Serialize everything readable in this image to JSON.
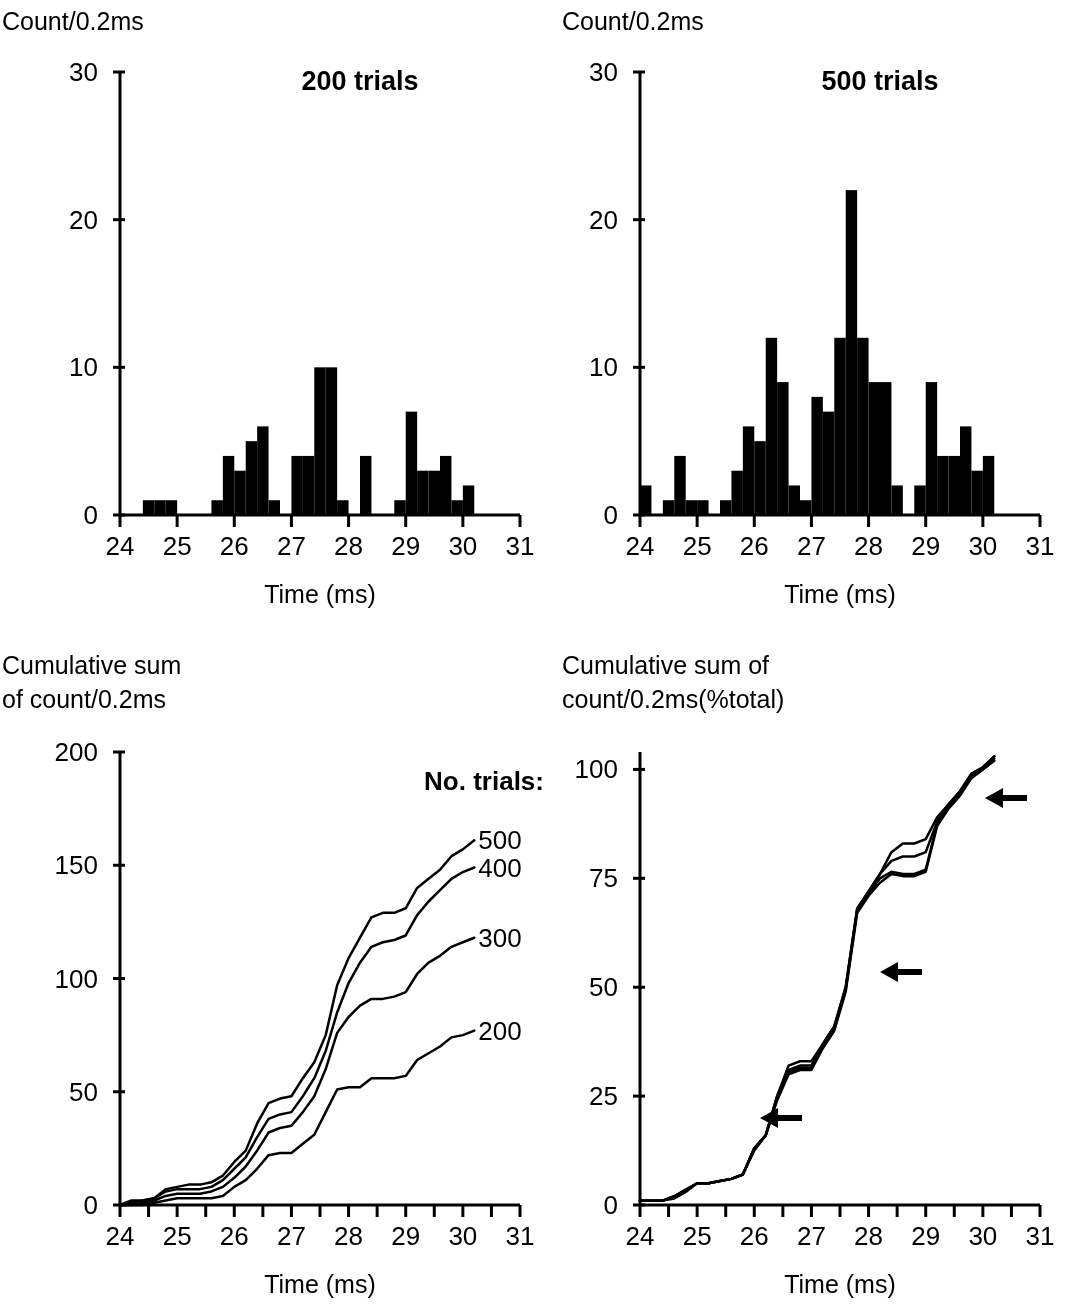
{
  "chart_data": [
    {
      "type": "histogram",
      "title": "200 trials",
      "ylabel": "Count/0.2ms",
      "xlabel": "Time (ms)",
      "color": "#000000",
      "bins": [
        24,
        24.2,
        24.4,
        24.6,
        24.8,
        25,
        25.2,
        25.4,
        25.6,
        25.8,
        26,
        26.2,
        26.4,
        26.6,
        26.8,
        27,
        27.2,
        27.4,
        27.6,
        27.8,
        28,
        28.2,
        28.4,
        28.6,
        28.8,
        29,
        29.2,
        29.4,
        29.6,
        29.8,
        30,
        30.2,
        30.4,
        30.6,
        30.8,
        31
      ],
      "values": [
        0,
        0,
        1,
        1,
        1,
        0,
        0,
        0,
        1,
        4,
        3,
        5,
        6,
        1,
        0,
        4,
        4,
        10,
        10,
        1,
        0,
        4,
        0,
        0,
        1,
        7,
        3,
        3,
        4,
        1,
        2,
        0,
        0,
        0,
        0
      ],
      "xlim": [
        24,
        31
      ],
      "xticks": [
        24,
        25,
        26,
        27,
        28,
        29,
        30,
        31
      ],
      "ylim": [
        0,
        30
      ],
      "yticks": [
        0,
        10,
        20,
        30
      ]
    },
    {
      "type": "histogram",
      "title": "500 trials",
      "ylabel": "Count/0.2ms",
      "xlabel": "Time (ms)",
      "color": "#000000",
      "bins": [
        24,
        24.2,
        24.4,
        24.6,
        24.8,
        25,
        25.2,
        25.4,
        25.6,
        25.8,
        26,
        26.2,
        26.4,
        26.6,
        26.8,
        27,
        27.2,
        27.4,
        27.6,
        27.8,
        28,
        28.2,
        28.4,
        28.6,
        28.8,
        29,
        29.2,
        29.4,
        29.6,
        29.8,
        30,
        30.2,
        30.4,
        30.6,
        30.8,
        31
      ],
      "values": [
        2,
        0,
        1,
        4,
        1,
        1,
        0,
        1,
        3,
        6,
        5,
        12,
        9,
        2,
        1,
        8,
        7,
        12,
        22,
        12,
        9,
        9,
        2,
        0,
        2,
        9,
        4,
        4,
        6,
        3,
        4,
        0,
        0,
        0,
        0
      ],
      "xlim": [
        24,
        31
      ],
      "xticks": [
        24,
        25,
        26,
        27,
        28,
        29,
        30,
        31
      ],
      "ylim": [
        0,
        30
      ],
      "yticks": [
        0,
        10,
        20,
        30
      ]
    },
    {
      "type": "line",
      "ylabel": "Cumulative sum of count/0.2ms",
      "xlabel": "Time (ms)",
      "legend_title": "No. trials:",
      "x": [
        24,
        24.2,
        24.4,
        24.6,
        24.8,
        25,
        25.2,
        25.4,
        25.6,
        25.8,
        26,
        26.2,
        26.4,
        26.6,
        26.8,
        27,
        27.2,
        27.4,
        27.6,
        27.8,
        28,
        28.2,
        28.4,
        28.6,
        28.8,
        29,
        29.2,
        29.4,
        29.6,
        29.8,
        30,
        30.2
      ],
      "series": [
        {
          "name": "500",
          "color": "#000000",
          "values": [
            0,
            2,
            2,
            3,
            7,
            8,
            9,
            9,
            10,
            13,
            19,
            24,
            36,
            45,
            47,
            48,
            56,
            63,
            75,
            97,
            109,
            118,
            127,
            129,
            129,
            131,
            140,
            144,
            148,
            154,
            157,
            161
          ]
        },
        {
          "name": "400",
          "color": "#000000",
          "values": [
            0,
            1,
            2,
            3,
            6,
            7,
            7,
            7,
            8,
            11,
            16,
            21,
            30,
            38,
            40,
            41,
            48,
            56,
            68,
            85,
            98,
            107,
            114,
            116,
            117,
            119,
            128,
            134,
            139,
            144,
            147,
            149
          ]
        },
        {
          "name": "300",
          "color": "#000000",
          "values": [
            0,
            0,
            1,
            2,
            4,
            5,
            5,
            5,
            6,
            8,
            12,
            17,
            24,
            32,
            34,
            35,
            41,
            48,
            60,
            76,
            83,
            88,
            91,
            91,
            92,
            94,
            102,
            107,
            110,
            114,
            116,
            118
          ]
        },
        {
          "name": "200",
          "color": "#000000",
          "values": [
            0,
            0,
            0,
            1,
            2,
            3,
            3,
            3,
            3,
            4,
            8,
            11,
            16,
            22,
            23,
            23,
            27,
            31,
            41,
            51,
            52,
            52,
            56,
            56,
            56,
            57,
            64,
            67,
            70,
            74,
            75,
            77
          ]
        }
      ],
      "xlim": [
        24,
        31
      ],
      "xticks": [
        24,
        {
          "value": 24.5,
          "label": null
        },
        25,
        {
          "value": 25.5,
          "label": null
        },
        26,
        {
          "value": 26.5,
          "label": null
        },
        27,
        {
          "value": 27.5,
          "label": null
        },
        28,
        {
          "value": 28.5,
          "label": null
        },
        29,
        {
          "value": 29.5,
          "label": null
        },
        30,
        {
          "value": 30.5,
          "label": null
        },
        31
      ],
      "ylim": [
        0,
        200
      ],
      "yticks": [
        0,
        50,
        100,
        150,
        200
      ]
    },
    {
      "type": "line",
      "ylabel": "Cumulative sum of count/0.2ms(%total)",
      "xlabel": "Time (ms)",
      "x": [
        24,
        24.2,
        24.4,
        24.6,
        24.8,
        25,
        25.2,
        25.4,
        25.6,
        25.8,
        26,
        26.2,
        26.4,
        26.6,
        26.8,
        27,
        27.2,
        27.4,
        27.6,
        27.8,
        28,
        28.2,
        28.4,
        28.6,
        28.8,
        29,
        29.2,
        29.4,
        29.6,
        29.8,
        30,
        30.2
      ],
      "series": [
        {
          "color": "#000000",
          "values": [
            1,
            1,
            1,
            2,
            3.5,
            5,
            5,
            5.5,
            6,
            7,
            13,
            16,
            25,
            32,
            33,
            33,
            37,
            41,
            50,
            68,
            72,
            76,
            81,
            83,
            83,
            84,
            89,
            92,
            95,
            99,
            100.5,
            103
          ]
        },
        {
          "color": "#000000",
          "values": [
            1,
            1,
            1,
            2,
            3.5,
            5,
            5,
            5.5,
            6,
            7,
            13,
            16,
            25,
            31,
            32,
            32,
            37,
            41,
            50,
            68,
            72,
            76,
            79,
            80,
            80,
            81,
            88,
            92,
            95,
            99,
            100.5,
            103
          ]
        },
        {
          "color": "#000000",
          "values": [
            1,
            1,
            1,
            2,
            3.5,
            5,
            5,
            5.5,
            6,
            7,
            13,
            16,
            24,
            30,
            31,
            31,
            36,
            40,
            49,
            67,
            71,
            74,
            76,
            75.5,
            75.5,
            76.5,
            87,
            91,
            94,
            98,
            100,
            102
          ]
        },
        {
          "color": "#000000",
          "values": [
            1,
            1,
            1,
            1.5,
            3,
            5,
            5,
            5.5,
            6,
            7,
            12.5,
            16,
            24.5,
            30.5,
            31.5,
            31.5,
            36.5,
            40.5,
            49.5,
            67.5,
            71.5,
            75,
            76.5,
            76,
            76,
            77,
            87.5,
            91.5,
            94.5,
            98.5,
            100,
            102.5
          ]
        }
      ],
      "xlim": [
        24,
        31
      ],
      "xticks": [
        24,
        {
          "value": 24.5,
          "label": null
        },
        25,
        {
          "value": 25.5,
          "label": null
        },
        26,
        {
          "value": 26.5,
          "label": null
        },
        27,
        {
          "value": 27.5,
          "label": null
        },
        28,
        {
          "value": 28.5,
          "label": null
        },
        29,
        {
          "value": 29.5,
          "label": null
        },
        30,
        {
          "value": 30.5,
          "label": null
        },
        31
      ],
      "ylim": [
        0,
        104
      ],
      "yticks": [
        0,
        25,
        50,
        75,
        100
      ]
    }
  ]
}
